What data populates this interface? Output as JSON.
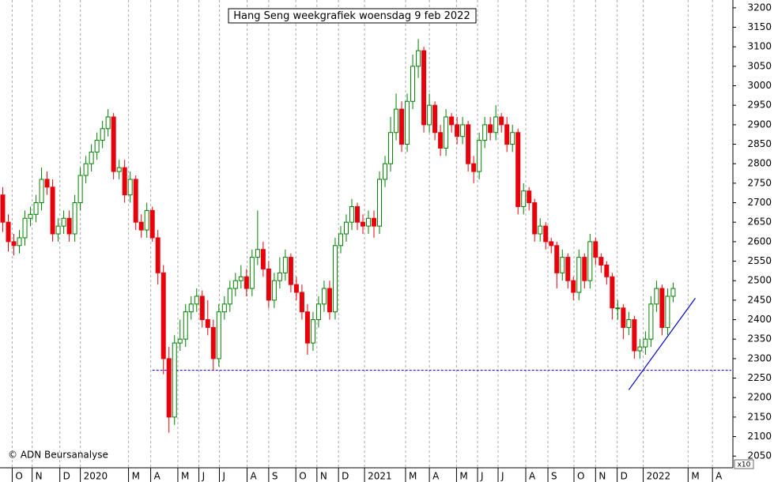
{
  "chart_data": {
    "type": "candlestick",
    "title": "Hang Seng weekgrafiek woensdag 9 feb 2022",
    "source": "© ADN Beursanalyse",
    "y_unit_label": "x10",
    "up_color": "#008000",
    "down_color": "#e8000b",
    "line_color": "#0000cc",
    "open": [
      2720,
      2650,
      2600,
      2590,
      2610,
      2660,
      2670,
      2700,
      2760,
      2740,
      2620,
      2640,
      2660,
      2620,
      2700,
      2770,
      2800,
      2830,
      2860,
      2890,
      2920,
      2780,
      2790,
      2720,
      2760,
      2650,
      2630,
      2680,
      2610,
      2520,
      2300,
      2150,
      2340,
      2350,
      2420,
      2440,
      2460,
      2400,
      2380,
      2300,
      2420,
      2440,
      2480,
      2500,
      2510,
      2480,
      2560,
      2580,
      2530,
      2450,
      2500,
      2520,
      2560,
      2490,
      2470,
      2420,
      2340,
      2400,
      2440,
      2480,
      2420,
      2590,
      2620,
      2650,
      2690,
      2650,
      2640,
      2660,
      2640,
      2760,
      2800,
      2880,
      2940,
      2850,
      2960,
      3050,
      3090,
      2900,
      2950,
      2880,
      2840,
      2920,
      2900,
      2870,
      2900,
      2800,
      2780,
      2860,
      2900,
      2880,
      2920,
      2900,
      2850,
      2880,
      2690,
      2730,
      2700,
      2620,
      2640,
      2600,
      2590,
      2520,
      2560,
      2500,
      2470,
      2560,
      2500,
      2600,
      2560,
      2540,
      2510,
      2430,
      2430,
      2380,
      2400,
      2320,
      2330,
      2350,
      2440,
      2480,
      2380,
      2460
    ],
    "high": [
      2740,
      2670,
      2620,
      2630,
      2680,
      2690,
      2720,
      2790,
      2780,
      2760,
      2660,
      2680,
      2680,
      2720,
      2790,
      2820,
      2850,
      2880,
      2910,
      2940,
      2930,
      2810,
      2810,
      2780,
      2770,
      2670,
      2700,
      2690,
      2630,
      2540,
      2330,
      2360,
      2400,
      2440,
      2460,
      2480,
      2475,
      2450,
      2400,
      2440,
      2460,
      2500,
      2520,
      2540,
      2530,
      2580,
      2680,
      2600,
      2550,
      2520,
      2560,
      2580,
      2570,
      2510,
      2490,
      2440,
      2420,
      2460,
      2500,
      2500,
      2610,
      2640,
      2670,
      2710,
      2700,
      2670,
      2680,
      2680,
      2780,
      2820,
      2920,
      2980,
      2960,
      2980,
      3080,
      3120,
      3100,
      2980,
      2960,
      2900,
      2940,
      2930,
      2920,
      2920,
      2910,
      2820,
      2880,
      2920,
      2920,
      2950,
      2930,
      2920,
      2900,
      2890,
      2750,
      2740,
      2710,
      2660,
      2650,
      2610,
      2600,
      2580,
      2570,
      2510,
      2580,
      2570,
      2620,
      2610,
      2570,
      2550,
      2520,
      2450,
      2440,
      2420,
      2410,
      2350,
      2370,
      2460,
      2500,
      2490,
      2480,
      2495
    ],
    "low": [
      2625,
      2575,
      2565,
      2570,
      2590,
      2640,
      2650,
      2680,
      2720,
      2600,
      2600,
      2620,
      2600,
      2600,
      2680,
      2750,
      2780,
      2810,
      2840,
      2870,
      2760,
      2760,
      2700,
      2700,
      2630,
      2610,
      2610,
      2600,
      2490,
      2260,
      2110,
      2130,
      2320,
      2330,
      2400,
      2420,
      2380,
      2360,
      2270,
      2280,
      2400,
      2420,
      2460,
      2480,
      2460,
      2460,
      2540,
      2510,
      2430,
      2430,
      2480,
      2500,
      2470,
      2450,
      2400,
      2310,
      2320,
      2380,
      2420,
      2400,
      2400,
      2570,
      2600,
      2630,
      2630,
      2620,
      2620,
      2610,
      2620,
      2740,
      2780,
      2860,
      2830,
      2830,
      2940,
      3020,
      2880,
      2880,
      2860,
      2820,
      2820,
      2880,
      2850,
      2850,
      2780,
      2750,
      2760,
      2840,
      2860,
      2860,
      2880,
      2830,
      2830,
      2670,
      2670,
      2680,
      2600,
      2600,
      2580,
      2570,
      2480,
      2500,
      2480,
      2450,
      2450,
      2480,
      2480,
      2540,
      2520,
      2490,
      2400,
      2400,
      2350,
      2360,
      2300,
      2300,
      2310,
      2330,
      2420,
      2360,
      2360,
      2445
    ],
    "close": [
      2650,
      2600,
      2590,
      2610,
      2660,
      2670,
      2700,
      2760,
      2740,
      2620,
      2640,
      2660,
      2620,
      2700,
      2770,
      2800,
      2830,
      2860,
      2890,
      2920,
      2780,
      2790,
      2720,
      2760,
      2650,
      2630,
      2680,
      2610,
      2520,
      2300,
      2150,
      2340,
      2350,
      2420,
      2440,
      2460,
      2400,
      2380,
      2300,
      2420,
      2440,
      2480,
      2500,
      2510,
      2480,
      2560,
      2580,
      2530,
      2450,
      2500,
      2520,
      2560,
      2490,
      2470,
      2420,
      2340,
      2400,
      2440,
      2480,
      2420,
      2590,
      2620,
      2650,
      2690,
      2650,
      2640,
      2660,
      2640,
      2760,
      2800,
      2880,
      2940,
      2850,
      2960,
      3050,
      3090,
      2900,
      2950,
      2880,
      2840,
      2920,
      2900,
      2870,
      2900,
      2800,
      2780,
      2860,
      2900,
      2880,
      2920,
      2900,
      2850,
      2880,
      2690,
      2730,
      2700,
      2620,
      2640,
      2600,
      2590,
      2520,
      2560,
      2500,
      2470,
      2560,
      2500,
      2600,
      2560,
      2540,
      2510,
      2430,
      2430,
      2380,
      2400,
      2320,
      2330,
      2350,
      2440,
      2480,
      2380,
      2460,
      2480
    ],
    "support_line": {
      "value": 2270,
      "x_start": 27
    },
    "trend_line": {
      "x": [
        113,
        125
      ],
      "y": [
        2220,
        2455
      ]
    },
    "xlim": [
      -0.5,
      131.5
    ],
    "ylim": [
      2020,
      3220
    ],
    "yticks": [
      2050,
      2100,
      2150,
      2200,
      2250,
      2300,
      2350,
      2400,
      2450,
      2500,
      2550,
      2600,
      2650,
      2700,
      2750,
      2800,
      2850,
      2900,
      2950,
      3000,
      3050,
      3100,
      3150,
      3200
    ],
    "xticks": [
      {
        "value": 1.7,
        "label": "O"
      },
      {
        "value": 5.3,
        "label": "N"
      },
      {
        "value": 10.3,
        "label": "D"
      },
      {
        "value": 14,
        "label": "2020"
      },
      {
        "value": 22.7,
        "label": "M"
      },
      {
        "value": 26.7,
        "label": "A"
      },
      {
        "value": 31.6,
        "label": "M"
      },
      {
        "value": 35.4,
        "label": "J"
      },
      {
        "value": 39.1,
        "label": "J"
      },
      {
        "value": 44.1,
        "label": "A"
      },
      {
        "value": 48,
        "label": "S"
      },
      {
        "value": 52.9,
        "label": "O"
      },
      {
        "value": 56.7,
        "label": "N"
      },
      {
        "value": 60.6,
        "label": "D"
      },
      {
        "value": 65.3,
        "label": "2021"
      },
      {
        "value": 72.7,
        "label": "M"
      },
      {
        "value": 77,
        "label": "A"
      },
      {
        "value": 81.9,
        "label": "M"
      },
      {
        "value": 85.7,
        "label": "J"
      },
      {
        "value": 89.4,
        "label": "J"
      },
      {
        "value": 94.4,
        "label": "A"
      },
      {
        "value": 98.4,
        "label": "S"
      },
      {
        "value": 103.1,
        "label": "O"
      },
      {
        "value": 107,
        "label": "N"
      },
      {
        "value": 110.9,
        "label": "D"
      },
      {
        "value": 115.6,
        "label": "2022"
      },
      {
        "value": 123.7,
        "label": "M"
      },
      {
        "value": 128.1,
        "label": "A"
      }
    ],
    "grid": true
  }
}
